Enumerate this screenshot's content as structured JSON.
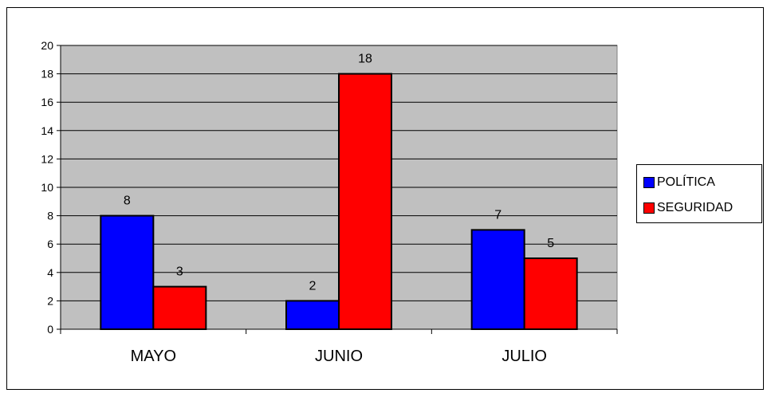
{
  "chart_data": {
    "type": "bar",
    "categories": [
      "MAYO",
      "JUNIO",
      "JULIO"
    ],
    "series": [
      {
        "name": "POLÍTICA",
        "values": [
          8,
          2,
          7
        ],
        "color": "#0000ff"
      },
      {
        "name": "SEGURIDAD",
        "values": [
          3,
          18,
          5
        ],
        "color": "#ff0000"
      }
    ],
    "ylim": [
      0,
      20
    ],
    "yticks": [
      0,
      2,
      4,
      6,
      8,
      10,
      12,
      14,
      16,
      18,
      20
    ],
    "data_labels": true,
    "grid": true,
    "legend_position": "right",
    "plot_background": "#c0c0c0"
  }
}
